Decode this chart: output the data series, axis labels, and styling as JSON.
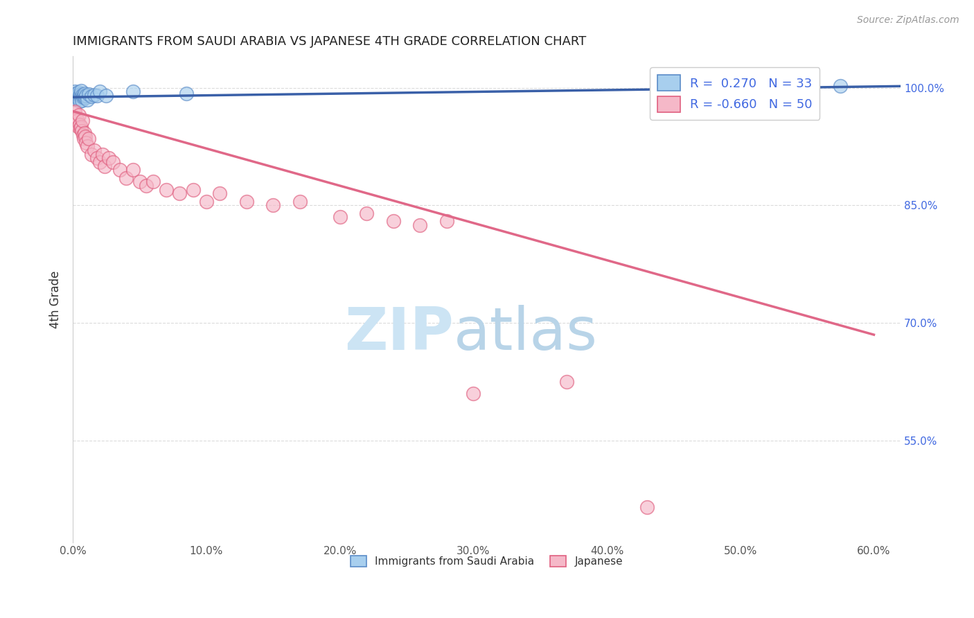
{
  "title": "IMMIGRANTS FROM SAUDI ARABIA VS JAPANESE 4TH GRADE CORRELATION CHART",
  "source_text": "Source: ZipAtlas.com",
  "ylabel": "4th Grade",
  "x_tick_labels": [
    "0.0%",
    "10.0%",
    "20.0%",
    "30.0%",
    "40.0%",
    "50.0%",
    "60.0%"
  ],
  "x_tick_values": [
    0.0,
    10.0,
    20.0,
    30.0,
    40.0,
    50.0,
    60.0
  ],
  "y_tick_labels": [
    "100.0%",
    "85.0%",
    "70.0%",
    "55.0%"
  ],
  "y_tick_values": [
    100.0,
    85.0,
    70.0,
    55.0
  ],
  "xlim": [
    0.0,
    62.0
  ],
  "ylim": [
    42.0,
    104.0
  ],
  "blue_R": 0.27,
  "blue_N": 33,
  "pink_R": -0.66,
  "pink_N": 50,
  "blue_color": "#A8CFEE",
  "pink_color": "#F5B8C8",
  "blue_edge_color": "#5B8CC8",
  "pink_edge_color": "#E06080",
  "blue_line_color": "#3A60A8",
  "pink_line_color": "#E06888",
  "legend_label_blue": "Immigrants from Saudi Arabia",
  "legend_label_pink": "Japanese",
  "blue_scatter_x": [
    0.1,
    0.15,
    0.2,
    0.2,
    0.25,
    0.3,
    0.3,
    0.35,
    0.4,
    0.4,
    0.45,
    0.5,
    0.5,
    0.55,
    0.6,
    0.6,
    0.65,
    0.7,
    0.75,
    0.8,
    0.85,
    0.9,
    1.0,
    1.1,
    1.2,
    1.4,
    1.6,
    1.8,
    2.0,
    2.5,
    4.5,
    8.5,
    57.5
  ],
  "blue_scatter_y": [
    99.2,
    99.5,
    98.8,
    99.0,
    99.3,
    99.0,
    98.5,
    98.7,
    99.1,
    99.4,
    98.6,
    99.0,
    98.3,
    99.2,
    98.9,
    99.6,
    98.4,
    99.1,
    98.8,
    99.0,
    99.3,
    98.7,
    99.0,
    98.5,
    99.2,
    98.9,
    99.1,
    99.0,
    99.5,
    99.0,
    99.5,
    99.3,
    100.2
  ],
  "pink_scatter_x": [
    0.1,
    0.15,
    0.2,
    0.25,
    0.3,
    0.35,
    0.4,
    0.45,
    0.5,
    0.55,
    0.6,
    0.65,
    0.7,
    0.75,
    0.8,
    0.85,
    0.9,
    1.0,
    1.1,
    1.2,
    1.4,
    1.6,
    1.8,
    2.0,
    2.2,
    2.4,
    2.7,
    3.0,
    3.5,
    4.0,
    4.5,
    5.0,
    5.5,
    6.0,
    7.0,
    8.0,
    9.0,
    10.0,
    11.0,
    13.0,
    15.0,
    17.0,
    20.0,
    22.0,
    24.0,
    26.0,
    28.0,
    30.0,
    37.0,
    43.0
  ],
  "pink_scatter_y": [
    96.8,
    97.0,
    96.2,
    95.5,
    96.0,
    95.8,
    95.0,
    96.5,
    95.3,
    94.8,
    95.0,
    94.5,
    95.8,
    94.0,
    93.5,
    94.2,
    93.8,
    93.0,
    92.5,
    93.5,
    91.5,
    92.0,
    91.0,
    90.5,
    91.5,
    90.0,
    91.0,
    90.5,
    89.5,
    88.5,
    89.5,
    88.0,
    87.5,
    88.0,
    87.0,
    86.5,
    87.0,
    85.5,
    86.5,
    85.5,
    85.0,
    85.5,
    83.5,
    84.0,
    83.0,
    82.5,
    83.0,
    61.0,
    62.5,
    46.5
  ],
  "blue_trend_x": [
    0.0,
    62.0
  ],
  "blue_trend_y": [
    98.8,
    100.2
  ],
  "pink_trend_x": [
    0.0,
    60.0
  ],
  "pink_trend_y": [
    97.0,
    68.5
  ]
}
